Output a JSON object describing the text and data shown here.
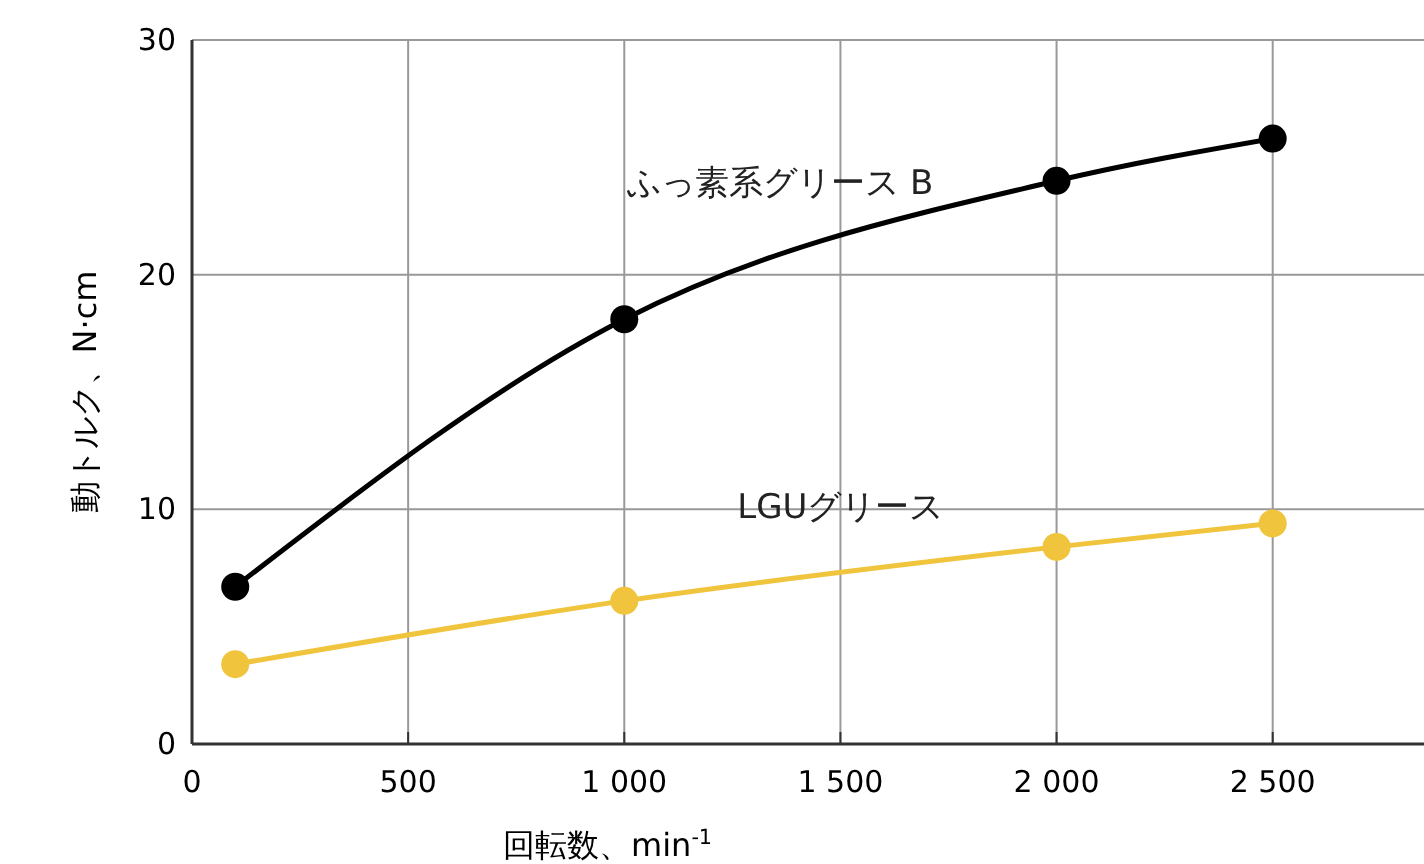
{
  "chart_data": {
    "type": "line",
    "xlabel": "回転数、min$^{-1}$",
    "ylabel": "動トルク、N·cm",
    "x": [
      100,
      1000,
      2000,
      2500
    ],
    "series": [
      {
        "name": "ふっ素系グリース B",
        "color": "#000000",
        "values": [
          6.7,
          18.1,
          24.0,
          25.8
        ]
      },
      {
        "name": "LGUグリース",
        "color": "#f0c43c",
        "values": [
          3.4,
          6.1,
          8.4,
          9.4
        ]
      }
    ],
    "xlim": [
      0,
      2850
    ],
    "xticks": [
      0,
      500,
      {
        "value": 1000,
        "label": "1 000"
      },
      {
        "value": 1500,
        "label": "1 500"
      },
      {
        "value": 2000,
        "label": "2 000"
      },
      {
        "value": 2500,
        "label": "2 500"
      }
    ],
    "ylim": [
      0,
      30
    ],
    "yticks": [
      0,
      10,
      20,
      30
    ],
    "grid": true,
    "marker": "circle",
    "line_style": "solid"
  }
}
